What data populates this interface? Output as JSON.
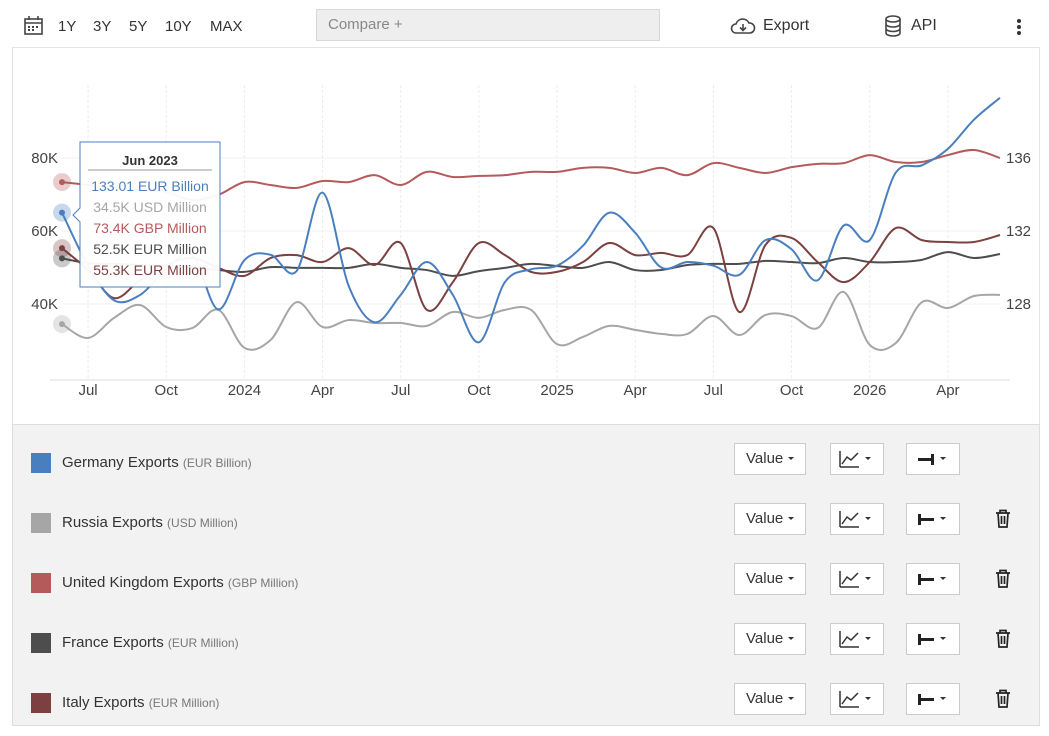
{
  "toolbar": {
    "ranges": [
      "1Y",
      "3Y",
      "5Y",
      "10Y",
      "MAX"
    ],
    "compare": "Compare +",
    "export": "Export",
    "api": "API"
  },
  "chart_data": {
    "type": "line",
    "x": [
      "2023-06",
      "2023-07",
      "2023-08",
      "2023-09",
      "2023-10",
      "2023-11",
      "2023-12",
      "2024-01",
      "2024-02",
      "2024-03",
      "2024-04",
      "2024-05",
      "2024-06",
      "2024-07",
      "2024-08",
      "2024-09",
      "2024-10",
      "2024-11",
      "2024-12",
      "2025-01",
      "2025-02",
      "2025-03",
      "2025-04",
      "2025-05",
      "2025-06",
      "2025-07",
      "2025-08",
      "2025-09",
      "2025-10",
      "2025-11",
      "2025-12",
      "2026-01",
      "2026-02",
      "2026-03",
      "2026-04",
      "2026-05",
      "2026-06"
    ],
    "xlim": [
      "2023-06",
      "2026-06"
    ],
    "xticks": [
      {
        "value": "2023-07",
        "label": "Jul"
      },
      {
        "value": "2023-10",
        "label": "Oct"
      },
      {
        "value": "2024-01",
        "label": "2024"
      },
      {
        "value": "2024-04",
        "label": "Apr"
      },
      {
        "value": "2024-07",
        "label": "Jul"
      },
      {
        "value": "2024-10",
        "label": "Oct"
      },
      {
        "value": "2025-01",
        "label": "2025"
      },
      {
        "value": "2025-04",
        "label": "Apr"
      },
      {
        "value": "2025-07",
        "label": "Jul"
      },
      {
        "value": "2025-10",
        "label": "Oct"
      },
      {
        "value": "2026-01",
        "label": "2026"
      },
      {
        "value": "2026-04",
        "label": "Apr"
      }
    ],
    "ylim": [
      20000,
      100000
    ],
    "yticks": [
      {
        "value": 40000,
        "label": "40K"
      },
      {
        "value": 60000,
        "label": "60K"
      },
      {
        "value": 80000,
        "label": "80K"
      }
    ],
    "y2lim": [
      124,
      140
    ],
    "y2ticks": [
      128,
      132,
      136
    ],
    "grid": true,
    "series": [
      {
        "name": "Germany Exports",
        "unit": "(EUR Billion)",
        "mode": "Value",
        "axis": "y2",
        "color": "#4a7fbf",
        "values": [
          133.01,
          130.1,
          128.2,
          128.5,
          129.9,
          130.7,
          127.7,
          130.4,
          130.7,
          129.8,
          134.1,
          129.0,
          127.0,
          128.5,
          130.3,
          128.5,
          125.9,
          129.2,
          129.9,
          130.1,
          131.2,
          133.0,
          131.9,
          130.0,
          130.3,
          130.1,
          129.6,
          131.5,
          131.0,
          129.3,
          132.3,
          131.5,
          135.2,
          135.6,
          136.5,
          138.1,
          139.3
        ]
      },
      {
        "name": "Russia Exports",
        "unit": "(USD Million)",
        "mode": "Value",
        "color": "#a6a6a6",
        "values": [
          34500,
          30700,
          36200,
          39700,
          33700,
          33400,
          38400,
          28000,
          30100,
          40500,
          33700,
          35600,
          34800,
          34800,
          34000,
          37800,
          36200,
          38400,
          38400,
          29000,
          31000,
          34000,
          32900,
          31800,
          31800,
          36700,
          31500,
          37000,
          36700,
          33400,
          43300,
          28800,
          29300,
          40500,
          38900,
          42200,
          42500
        ]
      },
      {
        "name": "United Kingdom Exports",
        "unit": "(GBP Million)",
        "mode": "Value",
        "color": "#b55a5a",
        "values": [
          73400,
          72600,
          71800,
          71200,
          70700,
          68500,
          69900,
          73400,
          72600,
          71800,
          73700,
          73400,
          75300,
          72600,
          76200,
          74800,
          75100,
          75300,
          76200,
          76200,
          77300,
          77300,
          75900,
          77300,
          75300,
          78600,
          77300,
          75900,
          77500,
          78400,
          78600,
          80800,
          78900,
          78900,
          80800,
          82200,
          80000
        ]
      },
      {
        "name": "France Exports",
        "unit": "(EUR Million)",
        "mode": "Value",
        "color": "#4d4d4d",
        "values": [
          52500,
          51200,
          51000,
          50700,
          50400,
          50100,
          49300,
          48800,
          50100,
          49900,
          49900,
          49900,
          51000,
          49900,
          49300,
          47700,
          49000,
          49900,
          51000,
          50400,
          49900,
          51500,
          49300,
          49300,
          50700,
          51000,
          51000,
          51800,
          51500,
          51200,
          52600,
          51500,
          51500,
          52100,
          54200,
          52600,
          53700
        ]
      },
      {
        "name": "Italy Exports",
        "unit": "(EUR Million)",
        "mode": "Value",
        "color": "#7d4040",
        "values": [
          55300,
          49300,
          41600,
          46600,
          50700,
          52600,
          49900,
          47700,
          52600,
          53400,
          51500,
          55300,
          50700,
          56700,
          38400,
          46000,
          56700,
          53400,
          48800,
          48800,
          51500,
          56700,
          53400,
          54000,
          53400,
          60800,
          37800,
          56200,
          58100,
          51500,
          46000,
          51500,
          60800,
          57500,
          57000,
          57000,
          58900
        ]
      }
    ],
    "tooltip": {
      "title": "Jun 2023",
      "labels": [
        "133.01 EUR Billion",
        "34.5K USD Million",
        "73.4K GBP Million",
        "52.5K EUR Million",
        "55.3K EUR Million"
      ]
    }
  }
}
